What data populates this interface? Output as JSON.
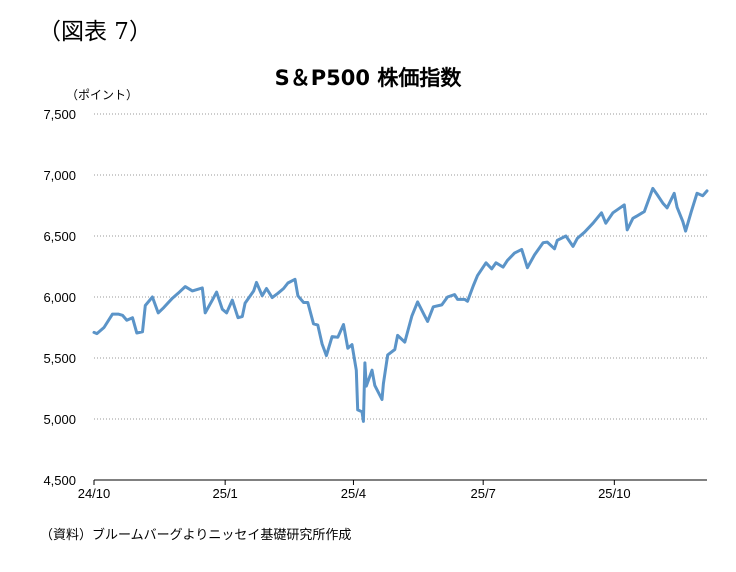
{
  "figure_label": "（図表 7）",
  "source_note": "（資料）ブルームバーグよりニッセイ基礎研究所作成",
  "chart_data": {
    "type": "line",
    "title": "S＆P500 株価指数",
    "unit_label": "（ポイント）",
    "ylim": [
      4500,
      7500
    ],
    "yticks": [
      4500,
      5000,
      5500,
      6000,
      6500,
      7000,
      7500
    ],
    "ytick_labels": [
      "4,500",
      "5,000",
      "5,500",
      "6,000",
      "6,500",
      "7,000",
      "7,500"
    ],
    "xlim": [
      "2024-10-01",
      "2025-12-05"
    ],
    "xticks": [
      "2024-10-01",
      "2025-01-01",
      "2025-04-01",
      "2025-07-01",
      "2025-10-01"
    ],
    "xtick_labels": [
      "24/10",
      "25/1",
      "25/4",
      "25/7",
      "25/10"
    ],
    "grid": "horizontal dotted",
    "line_color": "#5B94C8",
    "series": [
      {
        "points": [
          [
            "2024-10-01",
            5710
          ],
          [
            "2024-10-03",
            5700
          ],
          [
            "2024-10-08",
            5750
          ],
          [
            "2024-10-14",
            5860
          ],
          [
            "2024-10-18",
            5860
          ],
          [
            "2024-10-21",
            5850
          ],
          [
            "2024-10-24",
            5810
          ],
          [
            "2024-10-28",
            5830
          ],
          [
            "2024-10-31",
            5705
          ],
          [
            "2024-11-04",
            5715
          ],
          [
            "2024-11-06",
            5930
          ],
          [
            "2024-11-11",
            6000
          ],
          [
            "2024-11-15",
            5870
          ],
          [
            "2024-11-19",
            5915
          ],
          [
            "2024-11-25",
            5990
          ],
          [
            "2024-11-29",
            6030
          ],
          [
            "2024-12-04",
            6085
          ],
          [
            "2024-12-09",
            6050
          ],
          [
            "2024-12-16",
            6075
          ],
          [
            "2024-12-18",
            5870
          ],
          [
            "2024-12-23",
            5975
          ],
          [
            "2024-12-26",
            6040
          ],
          [
            "2024-12-30",
            5900
          ],
          [
            "2025-01-02",
            5870
          ],
          [
            "2025-01-06",
            5975
          ],
          [
            "2025-01-10",
            5830
          ],
          [
            "2025-01-13",
            5840
          ],
          [
            "2025-01-15",
            5950
          ],
          [
            "2025-01-21",
            6050
          ],
          [
            "2025-01-23",
            6120
          ],
          [
            "2025-01-27",
            6010
          ],
          [
            "2025-01-30",
            6070
          ],
          [
            "2025-02-03",
            5995
          ],
          [
            "2025-02-07",
            6030
          ],
          [
            "2025-02-11",
            6070
          ],
          [
            "2025-02-14",
            6115
          ],
          [
            "2025-02-19",
            6145
          ],
          [
            "2025-02-21",
            6010
          ],
          [
            "2025-02-25",
            5955
          ],
          [
            "2025-02-28",
            5955
          ],
          [
            "2025-03-04",
            5780
          ],
          [
            "2025-03-07",
            5770
          ],
          [
            "2025-03-10",
            5615
          ],
          [
            "2025-03-13",
            5520
          ],
          [
            "2025-03-17",
            5675
          ],
          [
            "2025-03-21",
            5670
          ],
          [
            "2025-03-25",
            5775
          ],
          [
            "2025-03-28",
            5580
          ],
          [
            "2025-03-31",
            5610
          ],
          [
            "2025-04-03",
            5400
          ],
          [
            "2025-04-04",
            5075
          ],
          [
            "2025-04-07",
            5060
          ],
          [
            "2025-04-08",
            4980
          ],
          [
            "2025-04-09",
            5460
          ],
          [
            "2025-04-10",
            5270
          ],
          [
            "2025-04-14",
            5400
          ],
          [
            "2025-04-16",
            5275
          ],
          [
            "2025-04-21",
            5160
          ],
          [
            "2025-04-22",
            5290
          ],
          [
            "2025-04-25",
            5525
          ],
          [
            "2025-04-30",
            5570
          ],
          [
            "2025-05-02",
            5685
          ],
          [
            "2025-05-07",
            5630
          ],
          [
            "2025-05-12",
            5845
          ],
          [
            "2025-05-16",
            5960
          ],
          [
            "2025-05-21",
            5845
          ],
          [
            "2025-05-23",
            5800
          ],
          [
            "2025-05-27",
            5920
          ],
          [
            "2025-06-02",
            5935
          ],
          [
            "2025-06-06",
            6000
          ],
          [
            "2025-06-11",
            6020
          ],
          [
            "2025-06-13",
            5980
          ],
          [
            "2025-06-18",
            5980
          ],
          [
            "2025-06-20",
            5965
          ],
          [
            "2025-06-24",
            6090
          ],
          [
            "2025-06-27",
            6175
          ],
          [
            "2025-07-03",
            6280
          ],
          [
            "2025-07-07",
            6230
          ],
          [
            "2025-07-10",
            6280
          ],
          [
            "2025-07-15",
            6245
          ],
          [
            "2025-07-18",
            6300
          ],
          [
            "2025-07-23",
            6360
          ],
          [
            "2025-07-28",
            6390
          ],
          [
            "2025-08-01",
            6240
          ],
          [
            "2025-08-06",
            6345
          ],
          [
            "2025-08-12",
            6445
          ],
          [
            "2025-08-15",
            6450
          ],
          [
            "2025-08-20",
            6395
          ],
          [
            "2025-08-22",
            6465
          ],
          [
            "2025-08-28",
            6500
          ],
          [
            "2025-09-02",
            6415
          ],
          [
            "2025-09-05",
            6480
          ],
          [
            "2025-09-10",
            6530
          ],
          [
            "2025-09-16",
            6605
          ],
          [
            "2025-09-22",
            6690
          ],
          [
            "2025-09-25",
            6605
          ],
          [
            "2025-09-30",
            6690
          ],
          [
            "2025-10-03",
            6715
          ],
          [
            "2025-10-08",
            6755
          ],
          [
            "2025-10-10",
            6550
          ],
          [
            "2025-10-14",
            6645
          ],
          [
            "2025-10-17",
            6665
          ],
          [
            "2025-10-22",
            6700
          ],
          [
            "2025-10-28",
            6890
          ],
          [
            "2025-10-31",
            6840
          ],
          [
            "2025-11-04",
            6770
          ],
          [
            "2025-11-07",
            6730
          ],
          [
            "2025-11-12",
            6850
          ],
          [
            "2025-11-14",
            6735
          ],
          [
            "2025-11-18",
            6620
          ],
          [
            "2025-11-20",
            6540
          ],
          [
            "2025-11-24",
            6700
          ],
          [
            "2025-11-28",
            6850
          ],
          [
            "2025-12-02",
            6830
          ],
          [
            "2025-12-05",
            6870
          ]
        ]
      }
    ]
  }
}
